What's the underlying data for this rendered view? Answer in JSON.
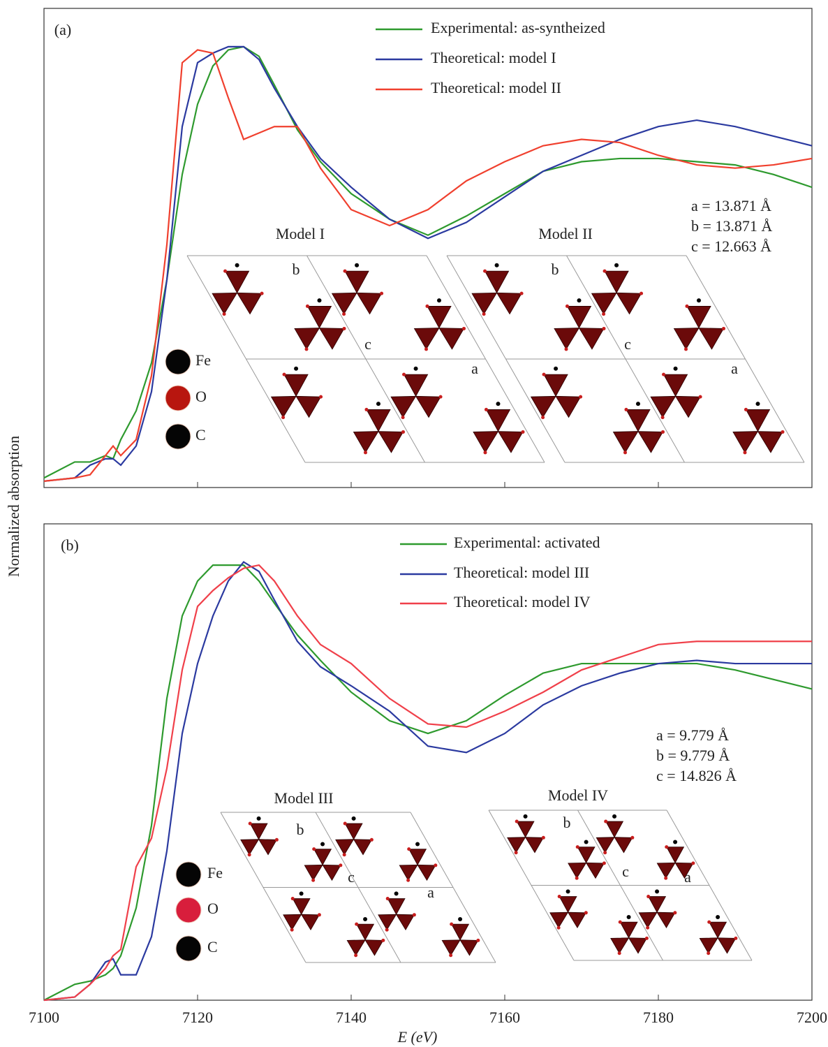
{
  "chart_data": [
    {
      "type": "line",
      "panel_label": "(a)",
      "ylabel": "Normalized absorption",
      "x": [
        7100,
        7104,
        7106,
        7108,
        7109,
        7110,
        7112,
        7114,
        7116,
        7118,
        7120,
        7122,
        7124,
        7126,
        7128,
        7130,
        7133,
        7136,
        7140,
        7145,
        7150,
        7155,
        7160,
        7165,
        7170,
        7175,
        7180,
        7185,
        7190,
        7195,
        7200
      ],
      "xlim": [
        7100,
        7200
      ],
      "ylim": [
        0,
        1.5
      ],
      "series": [
        {
          "name": "Experimental: as-syntheized",
          "color": "#2e9a2e",
          "values": [
            0.03,
            0.08,
            0.08,
            0.1,
            0.09,
            0.15,
            0.24,
            0.39,
            0.65,
            0.98,
            1.2,
            1.32,
            1.37,
            1.38,
            1.35,
            1.26,
            1.12,
            1.02,
            0.92,
            0.84,
            0.79,
            0.85,
            0.92,
            0.99,
            1.02,
            1.03,
            1.03,
            1.02,
            1.01,
            0.98,
            0.94
          ]
        },
        {
          "name": "Theoretical: model I",
          "color": "#2b3aa0",
          "values": [
            0.02,
            0.03,
            0.07,
            0.09,
            0.09,
            0.07,
            0.13,
            0.3,
            0.65,
            1.13,
            1.33,
            1.36,
            1.38,
            1.38,
            1.34,
            1.25,
            1.13,
            1.03,
            0.94,
            0.84,
            0.78,
            0.83,
            0.91,
            0.99,
            1.04,
            1.09,
            1.13,
            1.15,
            1.13,
            1.1,
            1.07
          ]
        },
        {
          "name": "Theoretical: model II",
          "color": "#f0402e",
          "values": [
            0.02,
            0.03,
            0.04,
            0.1,
            0.13,
            0.1,
            0.15,
            0.35,
            0.76,
            1.33,
            1.37,
            1.36,
            1.22,
            1.09,
            1.11,
            1.13,
            1.13,
            1.0,
            0.87,
            0.82,
            0.87,
            0.96,
            1.02,
            1.07,
            1.09,
            1.08,
            1.04,
            1.01,
            1.0,
            1.01,
            1.03
          ]
        }
      ],
      "lattice": [
        "a = 13.871 Å",
        "b = 13.871 Å",
        "c = 12.663 Å"
      ],
      "models": [
        "Model I",
        "Model II"
      ],
      "axis_labels": [
        "b",
        "c",
        "a",
        "b",
        "c",
        "a"
      ],
      "atoms": [
        {
          "name": "Fe",
          "color": "#050505"
        },
        {
          "name": "O",
          "color": "#b8160f"
        },
        {
          "name": "C",
          "color": "#050505"
        }
      ]
    },
    {
      "type": "line",
      "panel_label": "(b)",
      "xlabel": "E (eV)",
      "x": [
        7100,
        7104,
        7106,
        7108,
        7109,
        7110,
        7112,
        7114,
        7116,
        7118,
        7120,
        7122,
        7124,
        7126,
        7128,
        7130,
        7133,
        7136,
        7140,
        7145,
        7150,
        7155,
        7160,
        7165,
        7170,
        7175,
        7180,
        7185,
        7190,
        7195,
        7200
      ],
      "xlim": [
        7100,
        7200
      ],
      "ylim": [
        0,
        1.5
      ],
      "xticks": [
        7100,
        7120,
        7140,
        7160,
        7180,
        7200
      ],
      "series": [
        {
          "name": "Experimental: activated",
          "color": "#2e9a2e",
          "values": [
            0.0,
            0.05,
            0.06,
            0.08,
            0.1,
            0.14,
            0.29,
            0.55,
            0.95,
            1.21,
            1.32,
            1.37,
            1.37,
            1.37,
            1.32,
            1.25,
            1.15,
            1.07,
            0.97,
            0.88,
            0.84,
            0.88,
            0.96,
            1.03,
            1.06,
            1.06,
            1.06,
            1.06,
            1.04,
            1.01,
            0.98
          ]
        },
        {
          "name": "Theoretical: model III",
          "color": "#2b3aa0",
          "values": [
            0.0,
            0.01,
            0.05,
            0.12,
            0.13,
            0.08,
            0.08,
            0.2,
            0.47,
            0.84,
            1.06,
            1.21,
            1.32,
            1.38,
            1.35,
            1.26,
            1.13,
            1.05,
            0.99,
            0.91,
            0.8,
            0.78,
            0.84,
            0.93,
            0.99,
            1.03,
            1.06,
            1.07,
            1.06,
            1.06,
            1.06
          ]
        },
        {
          "name": "Theoretical: model IV",
          "color": "#f0404a",
          "values": [
            0.0,
            0.01,
            0.05,
            0.1,
            0.14,
            0.16,
            0.42,
            0.51,
            0.73,
            1.04,
            1.24,
            1.29,
            1.33,
            1.36,
            1.37,
            1.32,
            1.21,
            1.12,
            1.06,
            0.95,
            0.87,
            0.86,
            0.91,
            0.97,
            1.04,
            1.08,
            1.12,
            1.13,
            1.13,
            1.13,
            1.13
          ]
        }
      ],
      "lattice": [
        "a = 9.779 Å",
        "b = 9.779 Å",
        "c = 14.826 Å"
      ],
      "models": [
        "Model III",
        "Model IV"
      ],
      "axis_labels": [
        "b",
        "c",
        "a",
        "b",
        "c",
        "a"
      ],
      "atoms": [
        {
          "name": "Fe",
          "color": "#050505"
        },
        {
          "name": "O",
          "color": "#d81e3c"
        },
        {
          "name": "C",
          "color": "#050505"
        }
      ]
    }
  ]
}
